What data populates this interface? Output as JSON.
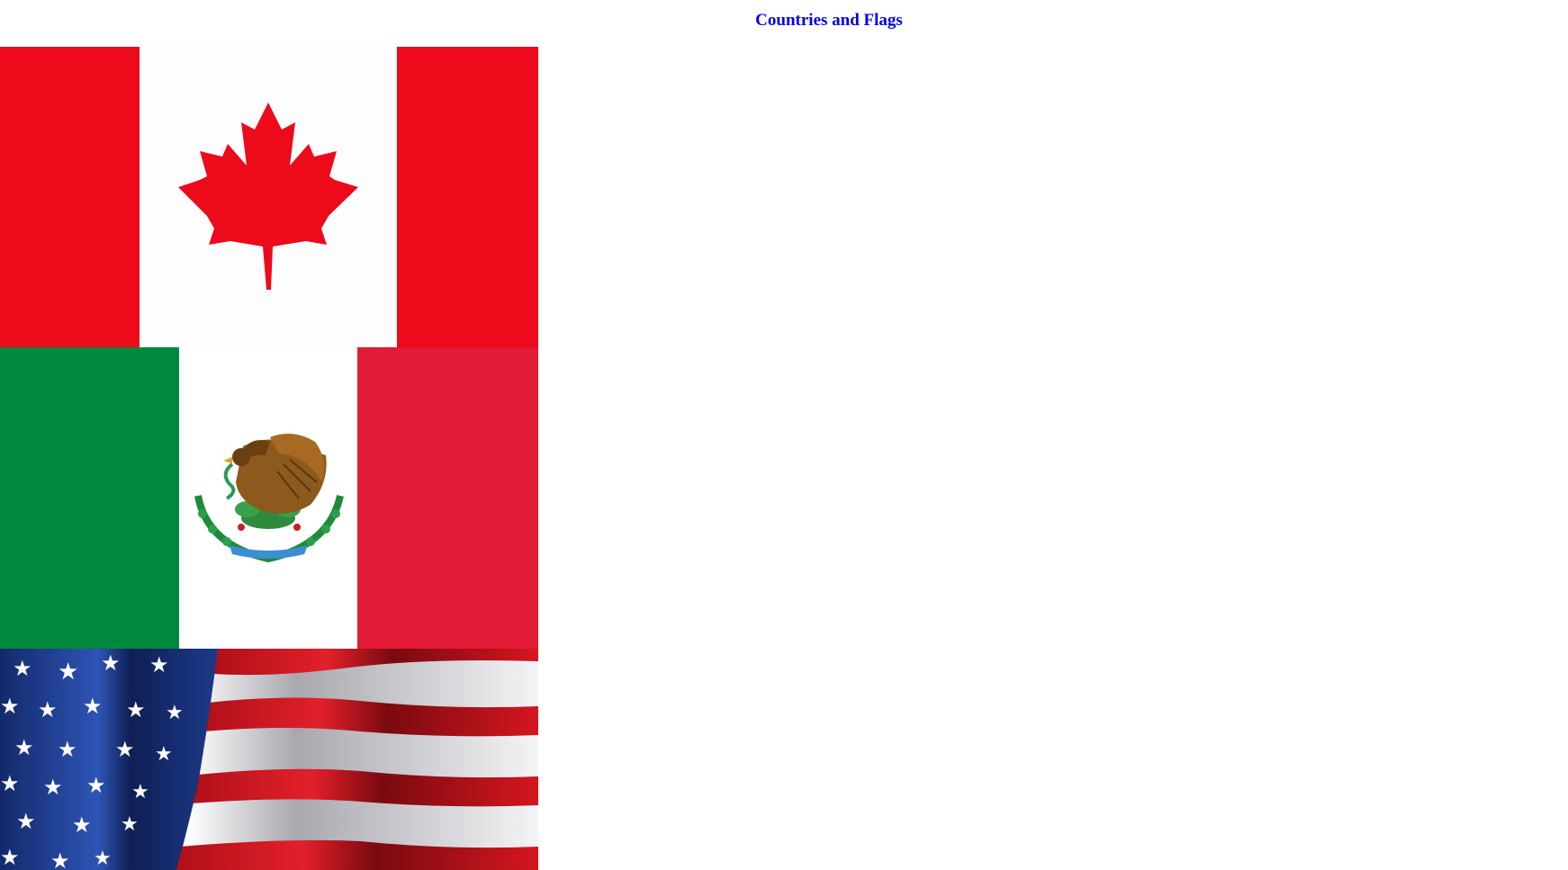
{
  "page": {
    "title": "Countries and Flags"
  },
  "flags": [
    {
      "country": "Canada",
      "icon": "canada-flag"
    },
    {
      "country": "Mexico",
      "icon": "mexico-flag"
    },
    {
      "country": "United States",
      "icon": "usa-flag"
    }
  ],
  "colors": {
    "title": "#0000ee",
    "canada_red": "#ec0a1b",
    "mexico_green": "#00893d",
    "mexico_red": "#e31b37",
    "usa_blue": "#1d3a8a",
    "usa_red": "#c8141e"
  }
}
